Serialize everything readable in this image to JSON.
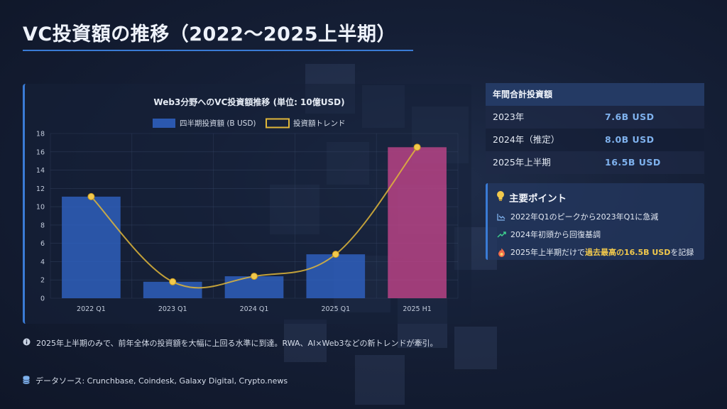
{
  "page": {
    "title": "VC投資額の推移（2022〜2025上半期）"
  },
  "chart_data": {
    "type": "bar",
    "title": "Web3分野へのVC投資額推移 (単位: 10億USD)",
    "categories": [
      "2022 Q1",
      "2023 Q1",
      "2024 Q1",
      "2025 Q1",
      "2025 H1"
    ],
    "series": [
      {
        "name": "四半期投資額 (B USD)",
        "type": "bar",
        "values": [
          11.1,
          1.8,
          2.4,
          4.8,
          16.5
        ]
      },
      {
        "name": "投資額トレンド",
        "type": "line",
        "values": [
          11.1,
          1.8,
          2.4,
          4.8,
          16.5
        ]
      }
    ],
    "yticks": [
      "0",
      "2",
      "4",
      "6",
      "8",
      "10",
      "12",
      "14",
      "16",
      "18"
    ],
    "ylim": [
      0,
      18
    ],
    "grid": true,
    "legend": "top-center",
    "colors": {
      "bar": "#2f63c4",
      "highlight_bar": "#c2458a",
      "line": "#e0b73a",
      "point": "#f2c94c"
    }
  },
  "annual_table": {
    "header": "年間合計投資額",
    "rows": [
      {
        "label": "2023年",
        "value": "7.6B USD"
      },
      {
        "label": "2024年（推定）",
        "value": "8.0B USD"
      },
      {
        "label": "2025年上半期",
        "value": "16.5B USD"
      }
    ]
  },
  "key_points": {
    "icon": "lightbulb-icon",
    "title": "主要ポイント",
    "items": [
      {
        "icon": "chart-line-down-icon",
        "text": "2022年Q1のピークから2023年Q1に急減"
      },
      {
        "icon": "trend-up-icon",
        "text": "2024年初頭から回復基調"
      },
      {
        "icon": "fire-icon",
        "prefix": "2025年上半期だけで",
        "highlight": "過去最高の16.5B USD",
        "suffix": "を記録"
      }
    ]
  },
  "note": {
    "icon": "info-icon",
    "text": "2025年上半期のみで、前年全体の投資額を大幅に上回る水準に到達。RWA、AI×Web3などの新トレンドが牽引。"
  },
  "source": {
    "icon": "database-icon",
    "text": "データソース: Crunchbase, Coindesk, Galaxy Digital, Crypto.news"
  }
}
